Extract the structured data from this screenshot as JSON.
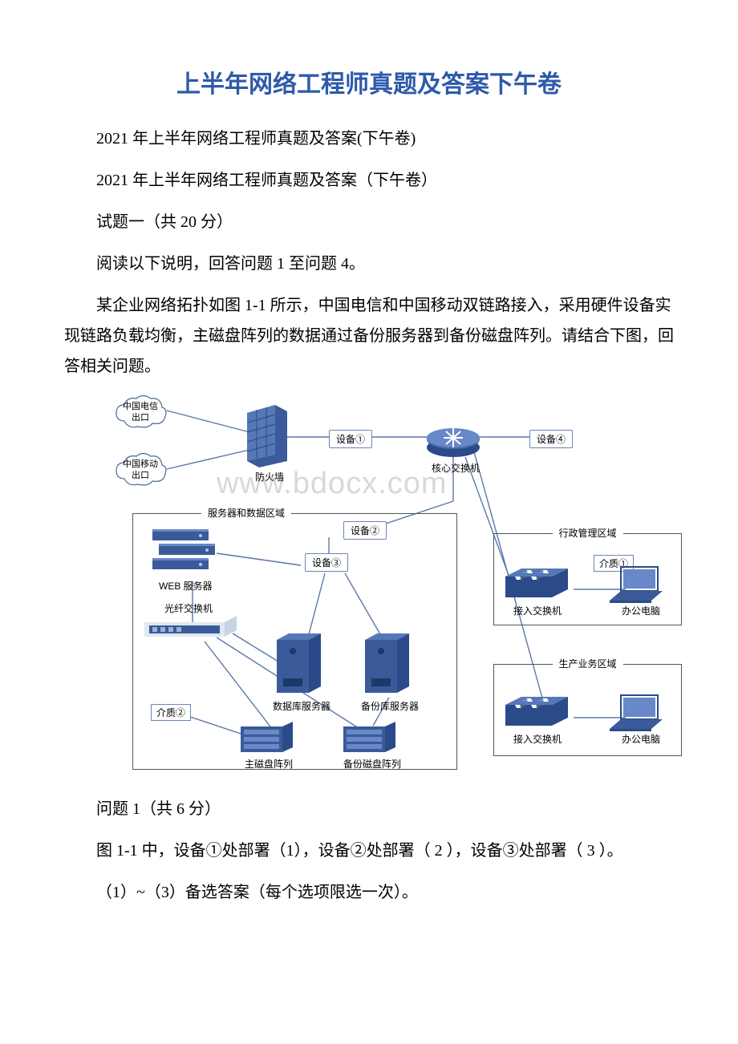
{
  "title": "上半年网络工程师真题及答案下午卷",
  "paragraphs": {
    "p1": "2021 年上半年网络工程师真题及答案(下午卷)",
    "p2": "2021 年上半年网络工程师真题及答案（下午卷）",
    "p3": "试题一（共 20 分）",
    "p4": "阅读以下说明，回答问题 1 至问题 4。",
    "p5": "某企业网络拓扑如图 1-1 所示，中国电信和中国移动双链路接入，采用硬件设备实现链路负载均衡，主磁盘阵列的数据通过备份服务器到备份磁盘阵列。请结合下图，回答相关问题。",
    "q1": "问题 1（共 6 分）",
    "q2": "图 1-1 中，设备①处部署（1），设备②处部署（ 2 ），设备③处部署（ 3 ）。",
    "q3": "（1）~（3）备选答案（每个选项限选一次）。"
  },
  "diagram": {
    "watermark": "www.bdocx.com",
    "clouds": {
      "telecom": "中国电信\n出口",
      "mobile": "中国移动\n出口"
    },
    "device_labels": {
      "d1": "设备①",
      "d2": "设备②",
      "d3": "设备③",
      "d4": "设备④"
    },
    "node_labels": {
      "firewall": "防火墙",
      "core_switch": "核心交换机",
      "web_server": "WEB 服务器",
      "fiber_switch": "光纤交换机",
      "db_server": "数据库服务器",
      "backup_server": "备份库服务器",
      "main_array": "主磁盘阵列",
      "backup_array": "备份磁盘阵列",
      "access_switch": "接入交换机",
      "office_pc": "办公电脑"
    },
    "zones": {
      "server_data": "服务器和数据区域",
      "admin": "行政管理区域",
      "production": "生产业务区域"
    },
    "media": {
      "m1": "介质①",
      "m2": "介质②"
    },
    "colors": {
      "device_blue": "#3a5a9a",
      "device_blue_light": "#5678b8",
      "line": "#5a78a8",
      "cloud_stroke": "#4a6a9a"
    }
  }
}
